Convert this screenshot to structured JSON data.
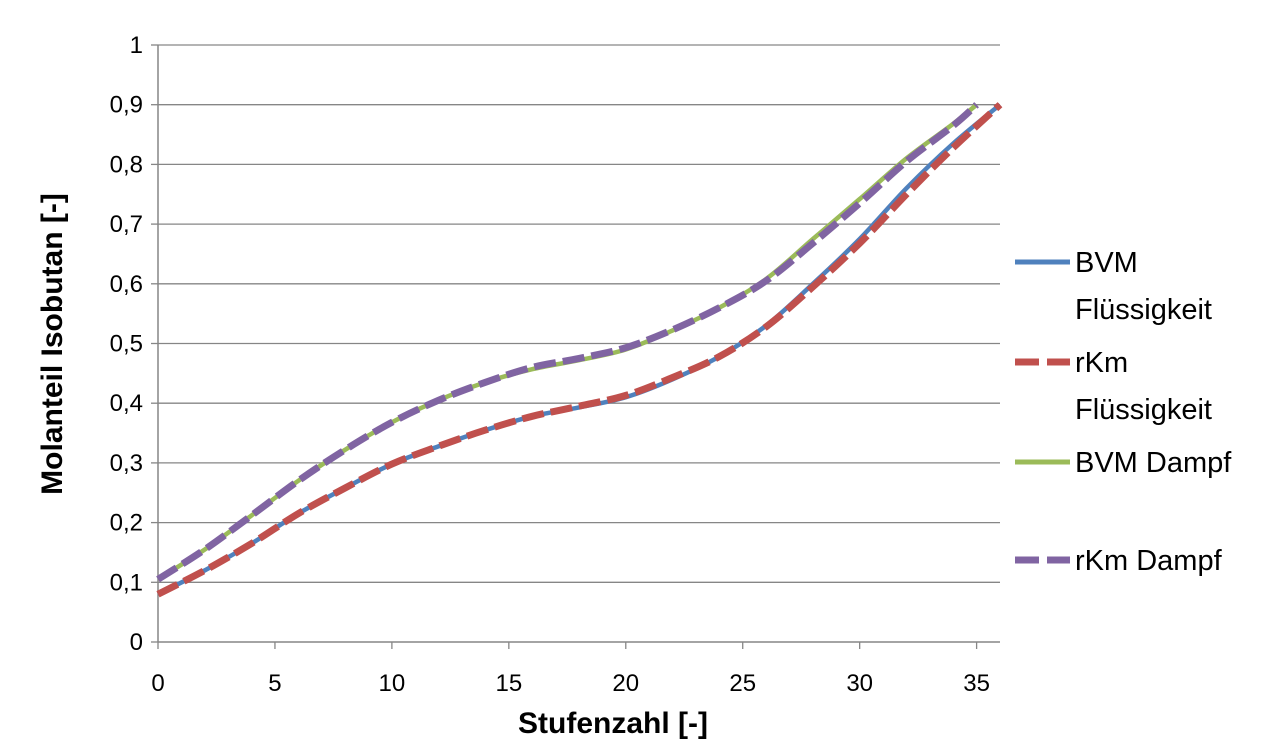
{
  "chart_data": {
    "type": "line",
    "title": "",
    "xlabel": "Stufenzahl [-]",
    "ylabel": "Molanteil Isobutan [-]",
    "xlim": [
      0,
      36
    ],
    "ylim": [
      0,
      1
    ],
    "x_ticks": [
      0,
      5,
      10,
      15,
      20,
      25,
      30,
      35
    ],
    "x_tick_labels": [
      "0",
      "5",
      "10",
      "15",
      "20",
      "25",
      "30",
      "35"
    ],
    "y_ticks": [
      0,
      0.1,
      0.2,
      0.3,
      0.4,
      0.5,
      0.6,
      0.7,
      0.8,
      0.9,
      1
    ],
    "y_tick_labels": [
      "0",
      "0,1",
      "0,2",
      "0,3",
      "0,4",
      "0,5",
      "0,6",
      "0,7",
      "0,8",
      "0,9",
      "1"
    ],
    "grid": "horizontal",
    "legend_position": "right",
    "series": [
      {
        "name": "BVM Flüssigkeit",
        "legend_lines": [
          "BVM",
          "Flüssigkeit"
        ],
        "color": "#4F81BD",
        "style": "solid",
        "x": [
          0,
          2,
          4,
          6,
          8,
          10,
          12,
          14,
          16,
          18,
          20,
          22,
          24,
          26,
          28,
          30,
          32,
          34,
          36
        ],
        "y": [
          0.08,
          0.12,
          0.165,
          0.215,
          0.258,
          0.298,
          0.328,
          0.355,
          0.378,
          0.393,
          0.41,
          0.44,
          0.478,
          0.53,
          0.6,
          0.675,
          0.76,
          0.835,
          0.9
        ]
      },
      {
        "name": "rKm Flüssigkeit",
        "legend_lines": [
          "rKm",
          "Flüssigkeit"
        ],
        "color": "#C0504D",
        "style": "dashed",
        "x": [
          0,
          2,
          4,
          6,
          8,
          10,
          12,
          14,
          16,
          18,
          20,
          22,
          24,
          26,
          28,
          30,
          32,
          34,
          36
        ],
        "y": [
          0.08,
          0.12,
          0.165,
          0.215,
          0.258,
          0.298,
          0.328,
          0.355,
          0.378,
          0.395,
          0.413,
          0.443,
          0.478,
          0.528,
          0.595,
          0.668,
          0.75,
          0.828,
          0.9
        ]
      },
      {
        "name": "BVM Dampf",
        "legend_lines": [
          "BVM Dampf"
        ],
        "color": "#9BBB59",
        "style": "solid",
        "x": [
          0,
          2,
          4,
          6,
          8,
          10,
          12,
          14,
          16,
          18,
          20,
          22,
          24,
          26,
          28,
          30,
          32,
          34,
          35
        ],
        "y": [
          0.105,
          0.155,
          0.212,
          0.27,
          0.322,
          0.368,
          0.405,
          0.435,
          0.457,
          0.472,
          0.49,
          0.522,
          0.56,
          0.608,
          0.675,
          0.742,
          0.81,
          0.868,
          0.9
        ]
      },
      {
        "name": "rKm Dampf",
        "legend_lines": [
          "rKm Dampf"
        ],
        "color": "#8064A2",
        "style": "dashed",
        "x": [
          0,
          2,
          4,
          6,
          8,
          10,
          12,
          14,
          16,
          18,
          20,
          22,
          24,
          26,
          28,
          30,
          32,
          34,
          35
        ],
        "y": [
          0.105,
          0.155,
          0.212,
          0.27,
          0.322,
          0.368,
          0.405,
          0.435,
          0.46,
          0.475,
          0.493,
          0.523,
          0.56,
          0.605,
          0.668,
          0.735,
          0.805,
          0.865,
          0.9
        ]
      }
    ]
  }
}
